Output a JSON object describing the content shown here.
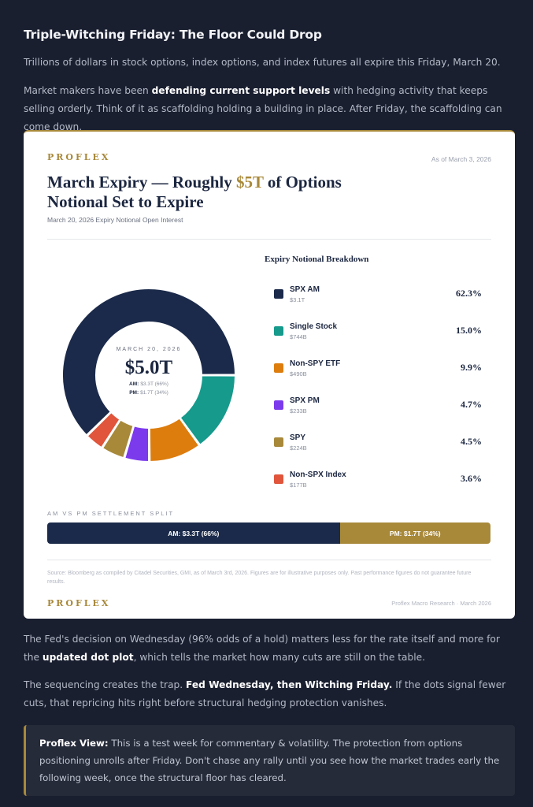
{
  "article": {
    "title": "Triple-Witching Friday: The Floor Could Drop",
    "p1": "Trillions of dollars in stock options, index options, and index futures all expire this Friday, March 20.",
    "p2_a": "Market makers have been ",
    "p2_b": "defending current support levels",
    "p2_c": " with hedging activity that keeps selling orderly. Think of it as scaffolding holding a building in place. After Friday, the scaffolding can come down.",
    "p3_a": "The Fed's decision on Wednesday (96% odds of a hold) matters less for the rate itself and more for the ",
    "p3_b": "updated dot plot",
    "p3_c": ", which tells the market how many cuts are still on the table.",
    "p4_a": "The sequencing creates the trap. ",
    "p4_b": "Fed Wednesday, then Witching Friday.",
    "p4_c": " If the dots signal fewer cuts, that repricing hits right before structural hedging protection vanishes.",
    "callout_label": "Proflex View:",
    "callout_text": " This is a test week for commentary & volatility. The protection from options positioning unrolls after Friday. Don't chase any rally until you see how the market trades early the following week, once the structural floor has cleared."
  },
  "card": {
    "brand": "PROFLEX",
    "as_of": "As of March 3, 2026",
    "title_a": "March Expiry — Roughly ",
    "title_b": "$5T",
    "title_c": " of Options Notional Set to Expire",
    "subtitle": "March 20, 2026 Expiry Notional Open Interest",
    "footnote": "Source: Bloomberg as compiled by Citadel Securities, GMI, as of March 3rd, 2026. Figures are for illustrative purposes only. Past performance figures do not guarantee future results.",
    "footer_brand": "PROFLEX",
    "footer_right": "Proflex Macro Research · March 2026"
  },
  "chart_data": [
    {
      "type": "pie",
      "title": "Expiry Notional Breakdown",
      "center": {
        "date": "MARCH 20, 2026",
        "total": "$5.0T",
        "am_label": "AM:",
        "am_value": "$3.3T (66%)",
        "pm_label": "PM:",
        "pm_value": "$1.7T (34%)"
      },
      "slices": [
        {
          "name": "SPX AM",
          "value_label": "$3.1T",
          "pct": 62.3,
          "pct_label": "62.3%",
          "color": "#1b2a4a"
        },
        {
          "name": "Single Stock",
          "value_label": "$744B",
          "pct": 15.0,
          "pct_label": "15.0%",
          "color": "#159a8c"
        },
        {
          "name": "Non-SPY ETF",
          "value_label": "$490B",
          "pct": 9.9,
          "pct_label": "9.9%",
          "color": "#dd7d0e"
        },
        {
          "name": "SPX PM",
          "value_label": "$233B",
          "pct": 4.7,
          "pct_label": "4.7%",
          "color": "#7c3aed"
        },
        {
          "name": "SPY",
          "value_label": "$224B",
          "pct": 4.5,
          "pct_label": "4.5%",
          "color": "#a8893a"
        },
        {
          "name": "Non-SPX Index",
          "value_label": "$177B",
          "pct": 3.6,
          "pct_label": "3.6%",
          "color": "#e0553b"
        }
      ]
    },
    {
      "type": "bar",
      "title": "AM VS PM SETTLEMENT SPLIT",
      "orientation": "horizontal-stacked",
      "segments": [
        {
          "name": "AM",
          "label": "AM: $3.3T (66%)",
          "pct": 66,
          "color": "#1b2a4a"
        },
        {
          "name": "PM",
          "label": "PM: $1.7T (34%)",
          "pct": 34,
          "color": "#a8893a"
        }
      ]
    }
  ]
}
